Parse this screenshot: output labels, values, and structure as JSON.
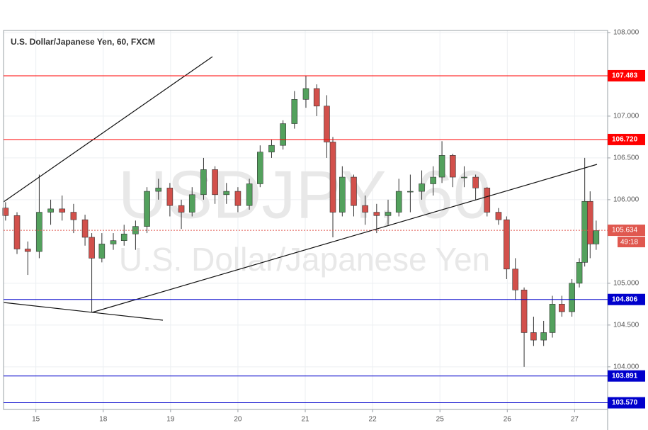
{
  "chart_data": {
    "type": "candlestick",
    "title": "U.S. Dollar/Japanese Yen, 60, FXCM",
    "watermark": "USDJPY, 60",
    "watermark_subtitle": "U.S. Dollar/Japanese Yen",
    "x": [
      -0.45,
      -0.28,
      -0.12,
      0.05,
      0.22,
      0.39,
      0.56,
      0.73,
      0.83,
      0.98,
      1.15,
      1.31,
      1.48,
      1.65,
      1.82,
      1.99,
      2.16,
      2.32,
      2.49,
      2.66,
      2.83,
      3.0,
      3.17,
      3.33,
      3.5,
      3.67,
      3.84,
      4.01,
      4.17,
      4.32,
      4.41,
      4.55,
      4.72,
      4.89,
      5.06,
      5.23,
      5.39,
      5.56,
      5.73,
      5.9,
      6.03,
      6.19,
      6.36,
      6.53,
      6.7,
      6.87,
      6.99,
      7.12,
      7.25,
      7.39,
      7.54,
      7.67,
      7.81,
      7.96,
      8.07,
      8.15,
      8.23,
      8.32
    ],
    "open": [
      105.9,
      105.81,
      105.41,
      105.38,
      105.85,
      105.89,
      105.85,
      105.76,
      105.55,
      105.3,
      105.47,
      105.51,
      105.59,
      105.68,
      106.1,
      106.14,
      105.93,
      105.85,
      106.06,
      106.36,
      106.06,
      106.1,
      105.93,
      106.19,
      106.57,
      106.65,
      106.91,
      107.2,
      107.33,
      107.12,
      106.69,
      105.85,
      106.27,
      105.93,
      105.85,
      105.81,
      105.85,
      106.1,
      106.1,
      106.19,
      106.27,
      106.53,
      106.27,
      106.27,
      106.14,
      105.85,
      105.76,
      105.17,
      104.92,
      104.41,
      104.32,
      104.41,
      104.75,
      104.66,
      105.0,
      105.25,
      105.98,
      105.47
    ],
    "high": [
      105.97,
      105.85,
      105.5,
      106.3,
      106.0,
      106.05,
      105.95,
      105.82,
      105.6,
      105.6,
      105.6,
      105.7,
      105.75,
      106.15,
      106.25,
      106.2,
      106.0,
      106.15,
      106.5,
      106.4,
      106.2,
      106.15,
      106.25,
      106.65,
      106.72,
      106.95,
      107.3,
      107.48,
      107.38,
      107.25,
      106.75,
      106.4,
      106.3,
      106.05,
      105.95,
      106.0,
      106.25,
      106.3,
      106.35,
      106.4,
      106.7,
      106.55,
      106.4,
      106.3,
      106.15,
      105.9,
      105.8,
      105.3,
      104.95,
      104.6,
      104.55,
      104.85,
      104.85,
      105.05,
      105.3,
      106.5,
      106.1,
      105.75
    ],
    "low": [
      105.75,
      105.35,
      105.1,
      105.3,
      105.7,
      105.75,
      105.6,
      105.45,
      104.65,
      105.25,
      105.4,
      105.45,
      105.4,
      105.6,
      106.0,
      105.8,
      105.65,
      105.8,
      106.0,
      105.95,
      105.95,
      105.85,
      105.88,
      106.15,
      106.5,
      106.6,
      106.85,
      107.1,
      107.0,
      106.5,
      105.55,
      105.8,
      105.8,
      105.7,
      105.6,
      105.7,
      105.8,
      105.85,
      106.0,
      106.05,
      106.2,
      106.15,
      106.15,
      106.0,
      105.8,
      105.7,
      105.05,
      104.8,
      104.0,
      104.25,
      104.25,
      104.35,
      104.6,
      104.6,
      104.95,
      105.2,
      105.3,
      105.4
    ],
    "close": [
      105.81,
      105.41,
      105.38,
      105.85,
      105.89,
      105.85,
      105.76,
      105.55,
      105.3,
      105.47,
      105.51,
      105.59,
      105.68,
      106.1,
      106.14,
      105.93,
      105.85,
      106.06,
      106.36,
      106.06,
      106.1,
      105.93,
      106.19,
      106.57,
      106.65,
      106.91,
      107.2,
      107.33,
      107.12,
      106.69,
      105.85,
      106.27,
      105.93,
      105.85,
      105.81,
      105.85,
      106.1,
      106.1,
      106.19,
      106.27,
      106.53,
      106.27,
      106.27,
      106.14,
      105.85,
      105.76,
      105.17,
      104.92,
      104.41,
      104.32,
      104.41,
      104.75,
      104.66,
      105.0,
      105.25,
      105.98,
      105.47,
      105.63
    ],
    "up_color": "#53a15d",
    "down_color": "#d2504b",
    "xlim": [
      -0.48,
      8.49
    ],
    "xticks": [
      {
        "value": 0,
        "label": "15"
      },
      {
        "value": 1,
        "label": "18"
      },
      {
        "value": 2,
        "label": "19"
      },
      {
        "value": 3,
        "label": "20"
      },
      {
        "value": 4,
        "label": "21"
      },
      {
        "value": 5,
        "label": "22"
      },
      {
        "value": 6,
        "label": "25"
      },
      {
        "value": 7,
        "label": "26"
      },
      {
        "value": 8,
        "label": "27"
      }
    ],
    "ylim": [
      103.49,
      108.025
    ],
    "yticks": [
      {
        "value": 108,
        "label": "108.000"
      },
      {
        "value": 107,
        "label": "107.000"
      },
      {
        "value": 106.5,
        "label": "106.500"
      },
      {
        "value": 106,
        "label": "106.000"
      },
      {
        "value": 105,
        "label": "105.000"
      },
      {
        "value": 104.5,
        "label": "104.500"
      },
      {
        "value": 104,
        "label": "104.000"
      }
    ],
    "grid": true,
    "levels": [
      {
        "value": 107.483,
        "label": "107.483",
        "color": "#ff0000"
      },
      {
        "value": 106.72,
        "label": "106.720",
        "color": "#ff0000"
      },
      {
        "value": 104.806,
        "label": "104.806",
        "color": "#0000cc"
      },
      {
        "value": 103.891,
        "label": "103.891",
        "color": "#0000cc"
      },
      {
        "value": 103.57,
        "label": "103.570",
        "color": "#0000cc"
      }
    ],
    "current_price": {
      "value": 105.634,
      "label": "105.634",
      "color": "#e0584f"
    },
    "countdown": "49:18"
  }
}
